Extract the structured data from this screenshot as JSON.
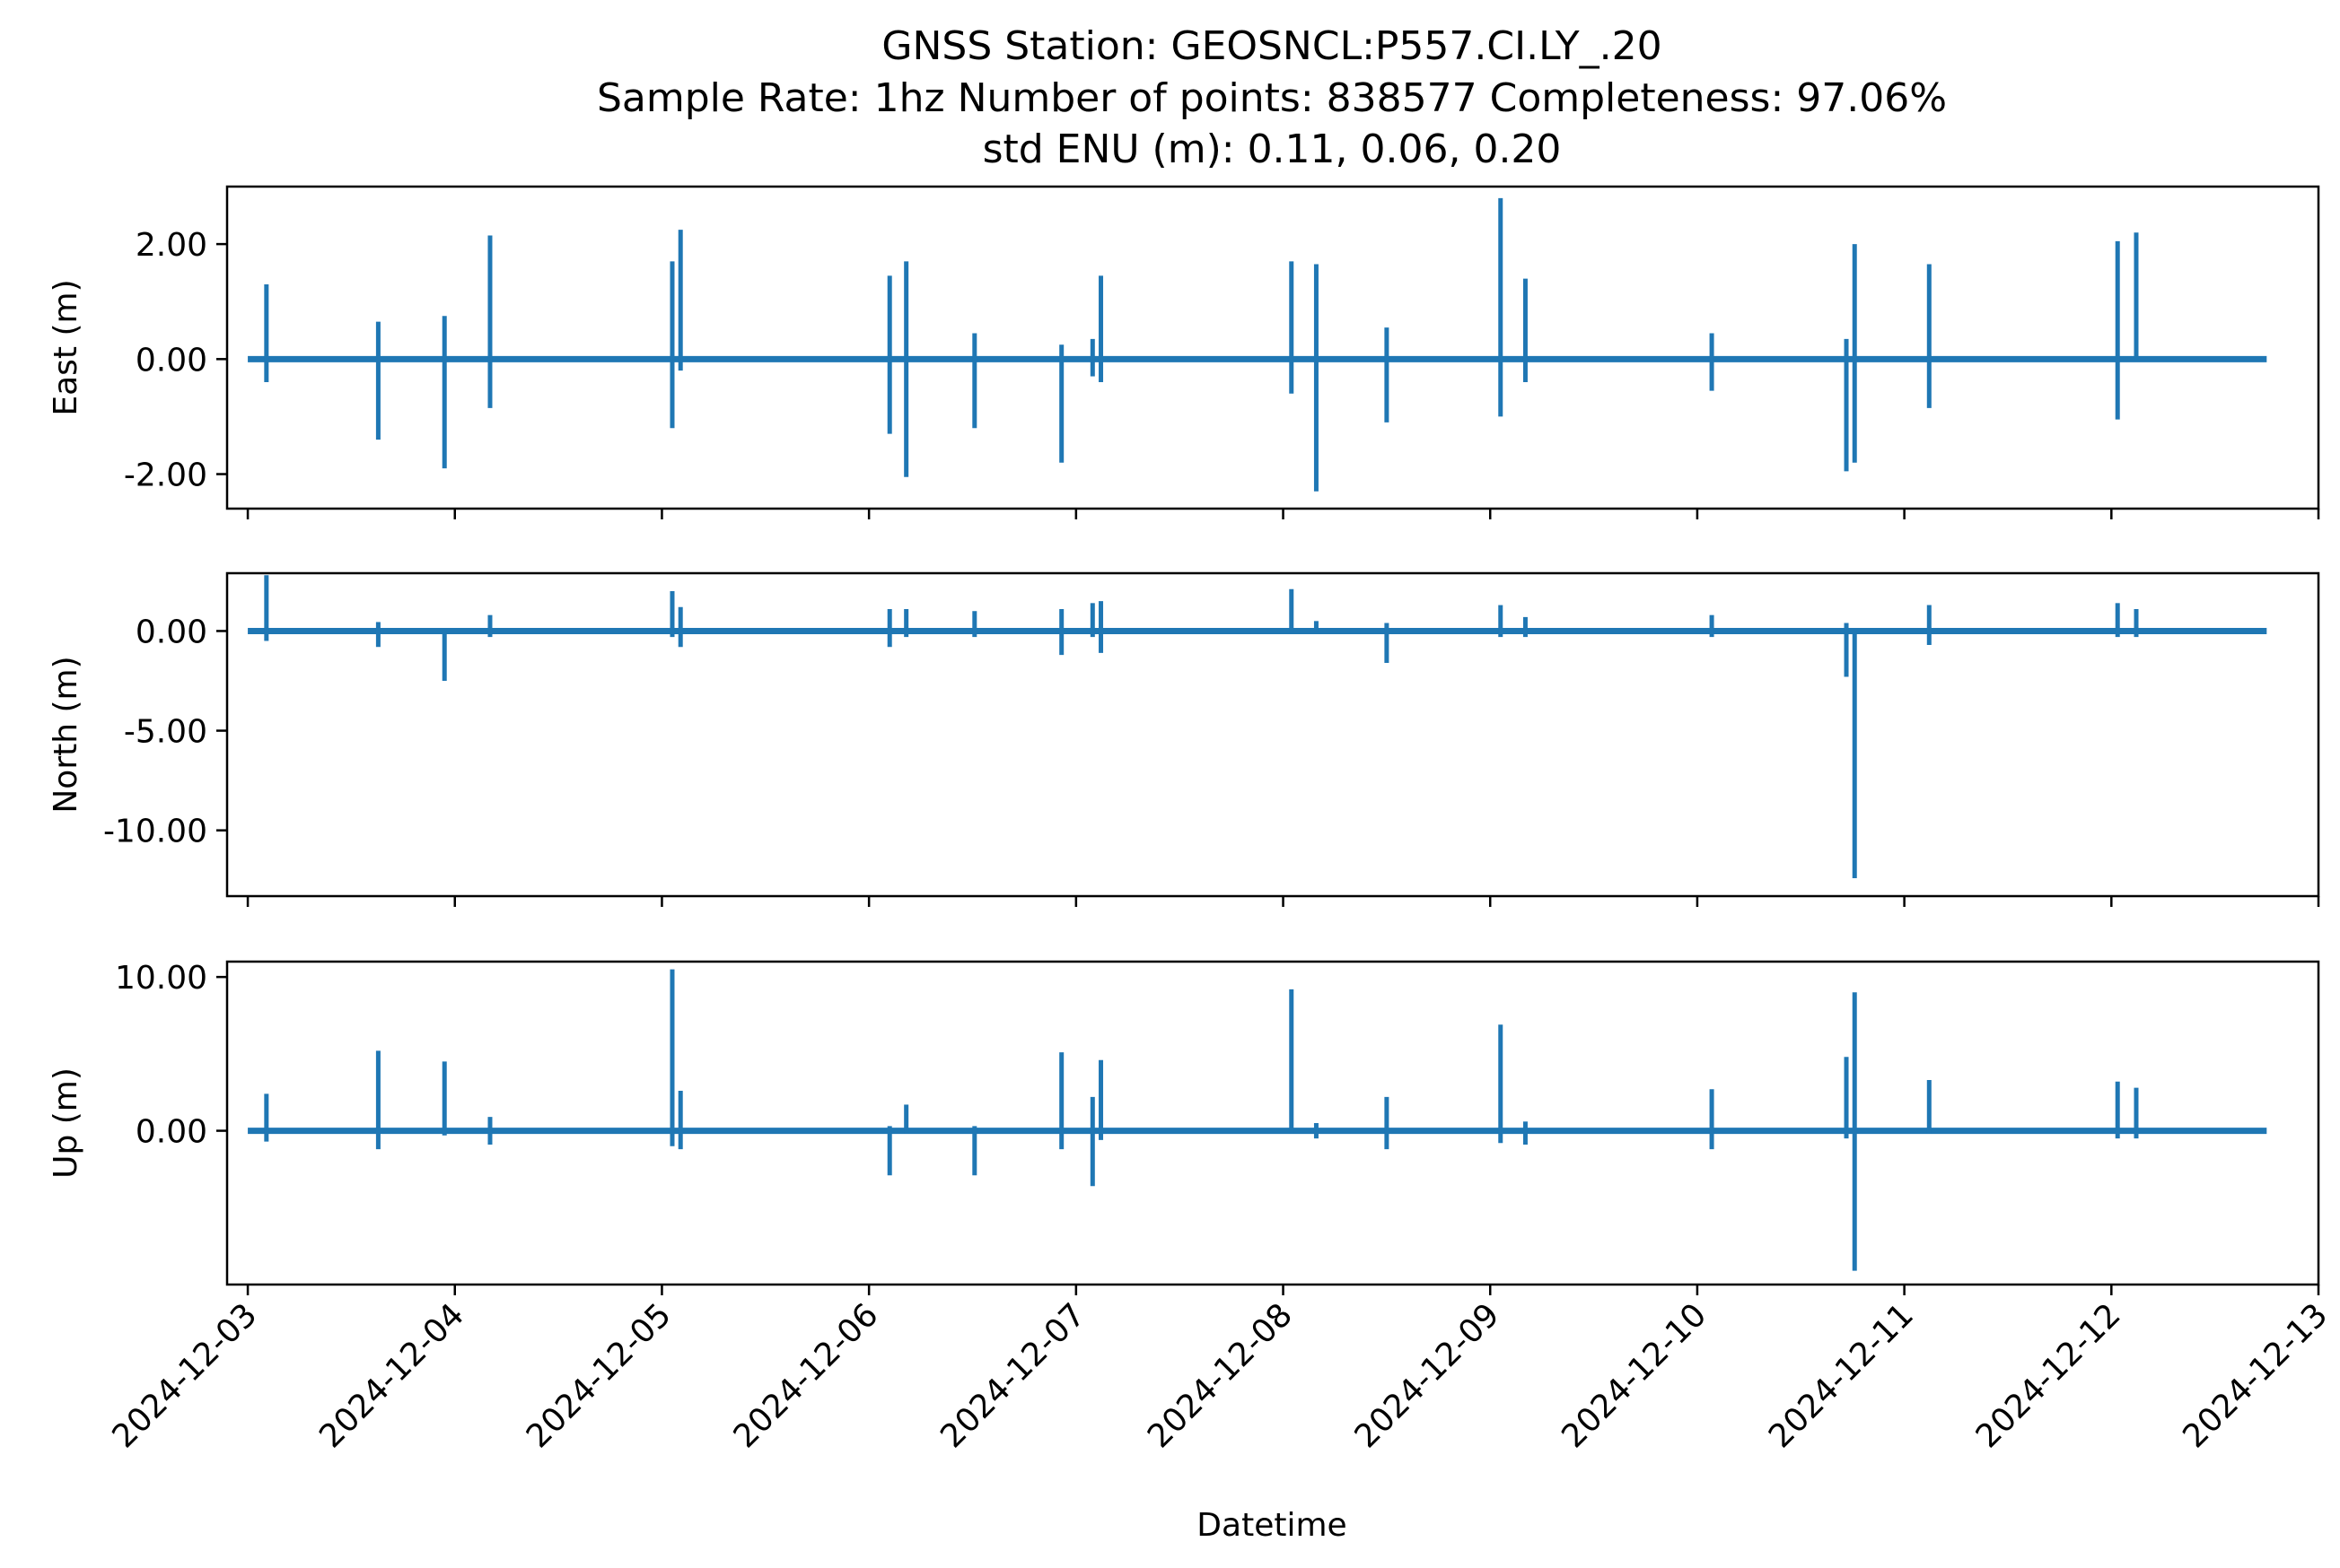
{
  "chart_data": {
    "type": "line",
    "title_lines": [
      "GNSS Station: GEOSNCL:P557.CI.LY_.20",
      "Sample Rate: 1hz   Number of points: 838577    Completeness:  97.06%",
      "std ENU (m):  0.11, 0.06, 0.20"
    ],
    "xlabel": "Datetime",
    "line_color": "#1f77b4",
    "x_range_days": [
      -0.1,
      10.0
    ],
    "x_ticks": [
      {
        "x": 0,
        "label": "2024-12-03"
      },
      {
        "x": 1,
        "label": "2024-12-04"
      },
      {
        "x": 2,
        "label": "2024-12-05"
      },
      {
        "x": 3,
        "label": "2024-12-06"
      },
      {
        "x": 4,
        "label": "2024-12-07"
      },
      {
        "x": 5,
        "label": "2024-12-08"
      },
      {
        "x": 6,
        "label": "2024-12-09"
      },
      {
        "x": 7,
        "label": "2024-12-10"
      },
      {
        "x": 8,
        "label": "2024-12-11"
      },
      {
        "x": 9,
        "label": "2024-12-12"
      },
      {
        "x": 10,
        "label": "2024-12-13"
      }
    ],
    "data_x_extent": [
      0.0,
      9.75
    ],
    "panels": [
      {
        "name": "East",
        "ylabel": "East (m)",
        "ylim": [
          -2.6,
          3.0
        ],
        "yticks": [
          {
            "v": 2.0,
            "label": "2.00"
          },
          {
            "v": 0.0,
            "label": "0.00"
          },
          {
            "v": -2.0,
            "label": "-2.00"
          }
        ],
        "spikes": [
          [
            0.09,
            1.3,
            -0.4
          ],
          [
            0.63,
            0.65,
            -1.4
          ],
          [
            0.95,
            0.75,
            -1.9
          ],
          [
            1.17,
            2.15,
            -0.85
          ],
          [
            2.05,
            1.7,
            -1.2
          ],
          [
            2.09,
            2.25,
            -0.2
          ],
          [
            3.1,
            1.45,
            -1.3
          ],
          [
            3.18,
            1.7,
            -2.05
          ],
          [
            3.51,
            0.45,
            -1.2
          ],
          [
            3.93,
            0.25,
            -1.8
          ],
          [
            4.08,
            0.35,
            -0.3
          ],
          [
            4.12,
            1.45,
            -0.4
          ],
          [
            5.04,
            1.7,
            -0.6
          ],
          [
            5.16,
            1.65,
            -2.3
          ],
          [
            5.5,
            0.55,
            -1.1
          ],
          [
            6.05,
            2.8,
            -1.0
          ],
          [
            6.17,
            1.4,
            -0.4
          ],
          [
            7.07,
            0.45,
            -0.55
          ],
          [
            7.72,
            0.35,
            -1.95
          ],
          [
            7.76,
            2.0,
            -1.8
          ],
          [
            8.12,
            1.65,
            -0.85
          ],
          [
            9.03,
            2.05,
            -1.05
          ],
          [
            9.12,
            2.2,
            0.0
          ]
        ]
      },
      {
        "name": "North",
        "ylabel": "North (m)",
        "ylim": [
          -13.3,
          2.9
        ],
        "yticks": [
          {
            "v": 0.0,
            "label": "0.00"
          },
          {
            "v": -5.0,
            "label": "-5.00"
          },
          {
            "v": -10.0,
            "label": "-10.00"
          }
        ],
        "spikes": [
          [
            0.09,
            2.8,
            -0.5
          ],
          [
            0.63,
            0.45,
            -0.8
          ],
          [
            0.95,
            0.0,
            -2.5
          ],
          [
            1.17,
            0.8,
            -0.3
          ],
          [
            2.05,
            2.0,
            -0.3
          ],
          [
            2.09,
            1.2,
            -0.8
          ],
          [
            3.1,
            1.1,
            -0.8
          ],
          [
            3.18,
            1.1,
            -0.3
          ],
          [
            3.51,
            1.0,
            -0.3
          ],
          [
            3.93,
            1.1,
            -1.2
          ],
          [
            4.08,
            1.4,
            -0.3
          ],
          [
            4.12,
            1.5,
            -1.1
          ],
          [
            5.04,
            2.1,
            -0.1
          ],
          [
            5.16,
            0.5,
            0.0
          ],
          [
            5.5,
            0.4,
            -1.6
          ],
          [
            6.05,
            1.3,
            -0.3
          ],
          [
            6.17,
            0.7,
            -0.3
          ],
          [
            7.07,
            0.8,
            -0.3
          ],
          [
            7.72,
            0.4,
            -2.3
          ],
          [
            7.76,
            0.0,
            -12.4
          ],
          [
            8.12,
            1.3,
            -0.7
          ],
          [
            9.03,
            1.4,
            -0.3
          ],
          [
            9.12,
            1.1,
            -0.3
          ]
        ]
      },
      {
        "name": "Up",
        "ylabel": "Up (m)",
        "ylim": [
          -10.0,
          11.0
        ],
        "yticks": [
          {
            "v": 10.0,
            "label": "10.00"
          },
          {
            "v": 0.0,
            "label": "0.00"
          }
        ],
        "spikes": [
          [
            0.09,
            2.4,
            -0.7
          ],
          [
            0.63,
            5.2,
            -1.2
          ],
          [
            0.95,
            4.5,
            -0.3
          ],
          [
            1.17,
            0.9,
            -0.9
          ],
          [
            2.05,
            10.5,
            -1.0
          ],
          [
            2.09,
            2.6,
            -1.2
          ],
          [
            3.1,
            0.3,
            -2.9
          ],
          [
            3.18,
            1.7,
            -0.2
          ],
          [
            3.51,
            0.3,
            -2.9
          ],
          [
            3.93,
            5.1,
            -1.2
          ],
          [
            4.08,
            2.2,
            -3.6
          ],
          [
            4.12,
            4.6,
            -0.6
          ],
          [
            5.04,
            9.2,
            -0.2
          ],
          [
            5.16,
            0.5,
            -0.5
          ],
          [
            5.5,
            2.2,
            -1.2
          ],
          [
            6.05,
            6.9,
            -0.8
          ],
          [
            6.17,
            0.6,
            -0.9
          ],
          [
            7.07,
            2.7,
            -1.2
          ],
          [
            7.72,
            4.8,
            -0.5
          ],
          [
            7.76,
            9.0,
            -9.1
          ],
          [
            8.12,
            3.3,
            -0.2
          ],
          [
            9.03,
            3.2,
            -0.5
          ],
          [
            9.12,
            2.8,
            -0.5
          ]
        ]
      }
    ]
  }
}
